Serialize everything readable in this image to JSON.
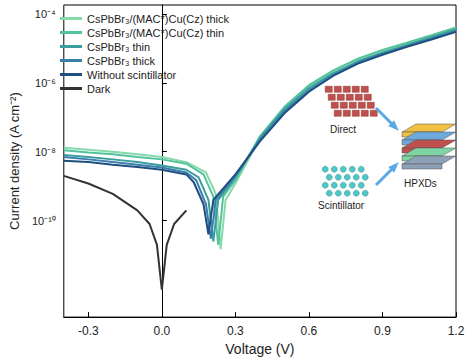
{
  "chart_data": {
    "type": "line",
    "x_label": "Voltage (V)",
    "y_label": "Current density (A cm⁻²)",
    "log": "y",
    "grid": false,
    "legend": "upper left",
    "xlim": [
      -0.4,
      1.2
    ],
    "xticks": [
      -0.3,
      {
        "value": 0,
        "label": "0.0"
      },
      0.3,
      0.6,
      0.9,
      1.2
    ],
    "ylim": [
      1.6e-13,
      0.00018
    ],
    "yticks": [
      {
        "value": 1e-10,
        "label": "10⁻¹⁰"
      },
      {
        "value": 1e-08,
        "label": "10⁻⁸"
      },
      {
        "value": 1e-06,
        "label": "10⁻⁶"
      },
      {
        "value": 0.0001,
        "label": "10⁻⁴"
      }
    ],
    "annotations": [
      "Direct",
      "Scintillator",
      "HPXDs"
    ],
    "series": [
      {
        "name": "CsPbBr₃/(MAC*)Cu(Cz) thick",
        "color": "#86d9a8",
        "x": [
          -0.4,
          -0.3,
          -0.2,
          -0.1,
          0,
          0.1,
          0.18,
          0.22,
          0.24,
          0.26,
          0.3,
          0.4,
          0.5,
          0.6,
          0.7,
          0.8,
          0.9,
          1.0,
          1.1,
          1.2
        ],
        "values": [
          1.3e-08,
          1.15e-08,
          1e-08,
          8.5e-09,
          7e-09,
          5e-09,
          2.5e-09,
          6e-10,
          1.5e-11,
          4e-10,
          1.2e-09,
          2.5e-08,
          1.8e-07,
          8e-07,
          2.2e-06,
          4.8e-06,
          8.5e-06,
          1.4e-05,
          2.3e-05,
          3.8e-05
        ]
      },
      {
        "name": "CsPbBr₃/(MAC*)Cu(Cz) thin",
        "color": "#52c39c",
        "x": [
          -0.4,
          -0.3,
          -0.2,
          -0.1,
          0,
          0.1,
          0.17,
          0.21,
          0.23,
          0.25,
          0.3,
          0.4,
          0.5,
          0.6,
          0.7,
          0.8,
          0.9,
          1.0,
          1.1,
          1.2
        ],
        "values": [
          1.1e-08,
          9.5e-09,
          8.5e-09,
          7e-09,
          6e-09,
          4.5e-09,
          2.2e-09,
          5e-10,
          2e-11,
          5e-10,
          1.5e-09,
          2.8e-08,
          2e-07,
          8.5e-07,
          2.3e-06,
          5e-06,
          9e-06,
          1.45e-05,
          2.4e-05,
          4e-05
        ]
      },
      {
        "name": "CsPbBr₃ thin",
        "color": "#3a9e9c",
        "x": [
          -0.4,
          -0.3,
          -0.2,
          -0.1,
          0,
          0.1,
          0.15,
          0.19,
          0.21,
          0.23,
          0.3,
          0.4,
          0.5,
          0.6,
          0.7,
          0.8,
          0.9,
          1.0,
          1.1,
          1.2
        ],
        "values": [
          8e-09,
          7e-09,
          6e-09,
          5e-09,
          4e-09,
          3e-09,
          1.8e-09,
          4e-10,
          2.5e-11,
          4e-10,
          1.8e-09,
          2.5e-08,
          1.7e-07,
          7e-07,
          1.9e-06,
          4.2e-06,
          7.5e-06,
          1.25e-05,
          2.1e-05,
          3.5e-05
        ]
      },
      {
        "name": "CsPbBr₃ thick",
        "color": "#3a7eae",
        "x": [
          -0.4,
          -0.3,
          -0.2,
          -0.1,
          0,
          0.1,
          0.14,
          0.18,
          0.2,
          0.22,
          0.3,
          0.4,
          0.5,
          0.6,
          0.7,
          0.8,
          0.9,
          1.0,
          1.1,
          1.2
        ],
        "values": [
          7e-09,
          6e-09,
          5e-09,
          4.2e-09,
          3.5e-09,
          2.5e-09,
          1.5e-09,
          3e-10,
          3e-11,
          4e-10,
          2e-09,
          2.2e-08,
          1.5e-07,
          6e-07,
          1.7e-06,
          3.8e-06,
          7e-06,
          1.15e-05,
          1.9e-05,
          3.2e-05
        ]
      },
      {
        "name": "Without scintillator",
        "color": "#1f4f80",
        "x": [
          -0.4,
          -0.3,
          -0.2,
          -0.1,
          0,
          0.1,
          0.13,
          0.17,
          0.19,
          0.21,
          0.3,
          0.4,
          0.5,
          0.6,
          0.7,
          0.8,
          0.9,
          1.0,
          1.1,
          1.2
        ],
        "values": [
          5.5e-09,
          5e-09,
          4.2e-09,
          3.6e-09,
          3e-09,
          2.2e-09,
          1.3e-09,
          3e-10,
          4e-11,
          4e-10,
          2.2e-09,
          2e-08,
          1.3e-07,
          5.5e-07,
          1.6e-06,
          3.6e-06,
          6.5e-06,
          1.1e-05,
          1.8e-05,
          3e-05
        ]
      },
      {
        "name": "Dark",
        "color": "#333333",
        "x": [
          -0.4,
          -0.3,
          -0.2,
          -0.1,
          -0.05,
          -0.02,
          0,
          0.02,
          0.05,
          0.1
        ],
        "values": [
          2e-09,
          1.2e-09,
          6e-10,
          2e-10,
          8e-11,
          2e-11,
          1e-12,
          2e-11,
          8e-11,
          2e-10
        ]
      }
    ]
  }
}
